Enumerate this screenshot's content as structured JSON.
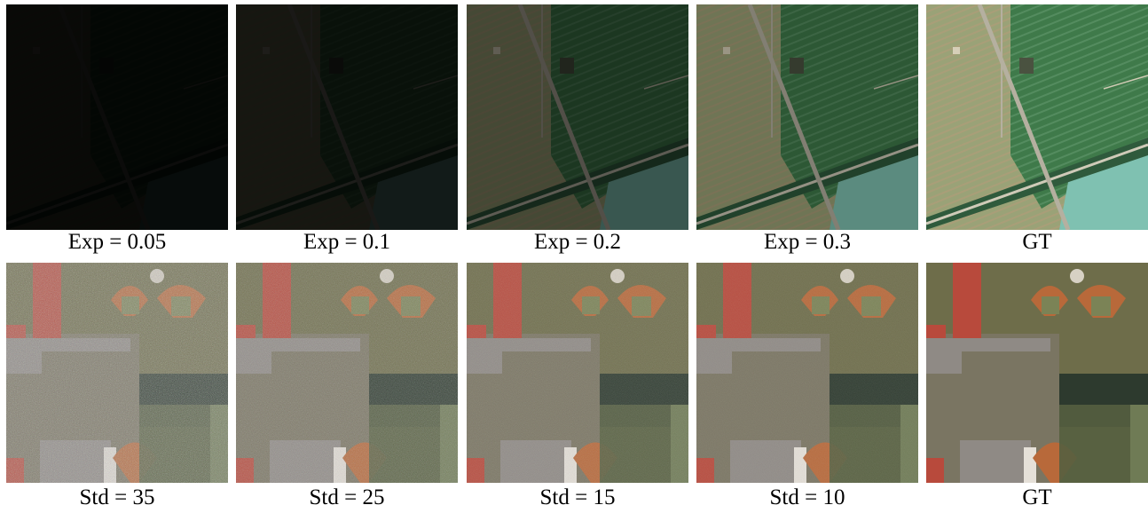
{
  "rows": [
    {
      "captions": [
        "Exp = 0.05",
        "Exp = 0.1",
        "Exp = 0.2",
        "Exp = 0.3",
        "GT"
      ],
      "brightness": [
        0.06,
        0.14,
        0.45,
        0.72,
        1.0
      ]
    },
    {
      "captions": [
        "Std = 35",
        "Std = 25",
        "Std = 15",
        "Std = 10",
        "GT"
      ],
      "noise": [
        0.35,
        0.25,
        0.15,
        0.1,
        0.0
      ]
    }
  ],
  "colors": {
    "field_light": "#9aa277",
    "field_green": "#3f7a4a",
    "water": "#7fc1b1",
    "road": "#b5b0a0",
    "roof": "#b84a3c",
    "infield": "#b8693a",
    "grass": "#6e6d4a",
    "pavement": "#8f8a85",
    "pond": "#2d3a2e"
  }
}
